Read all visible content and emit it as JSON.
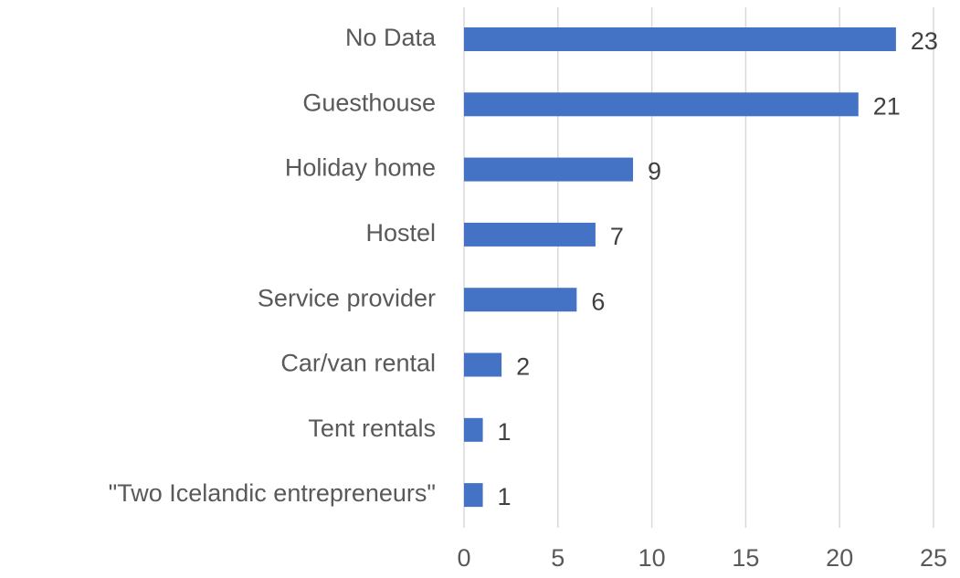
{
  "chart_data": {
    "type": "bar",
    "orientation": "horizontal",
    "categories": [
      "No Data",
      "Guesthouse",
      "Holiday home",
      "Hostel",
      "Service provider",
      "Car/van rental",
      "Tent rentals",
      "\"Two Icelandic entrepreneurs\""
    ],
    "values": [
      23,
      21,
      9,
      7,
      6,
      2,
      1,
      1
    ],
    "color": "#4472c4",
    "xlim": [
      0,
      25
    ],
    "xticks": [
      0,
      5,
      10,
      15,
      20,
      25
    ],
    "grid": true
  }
}
